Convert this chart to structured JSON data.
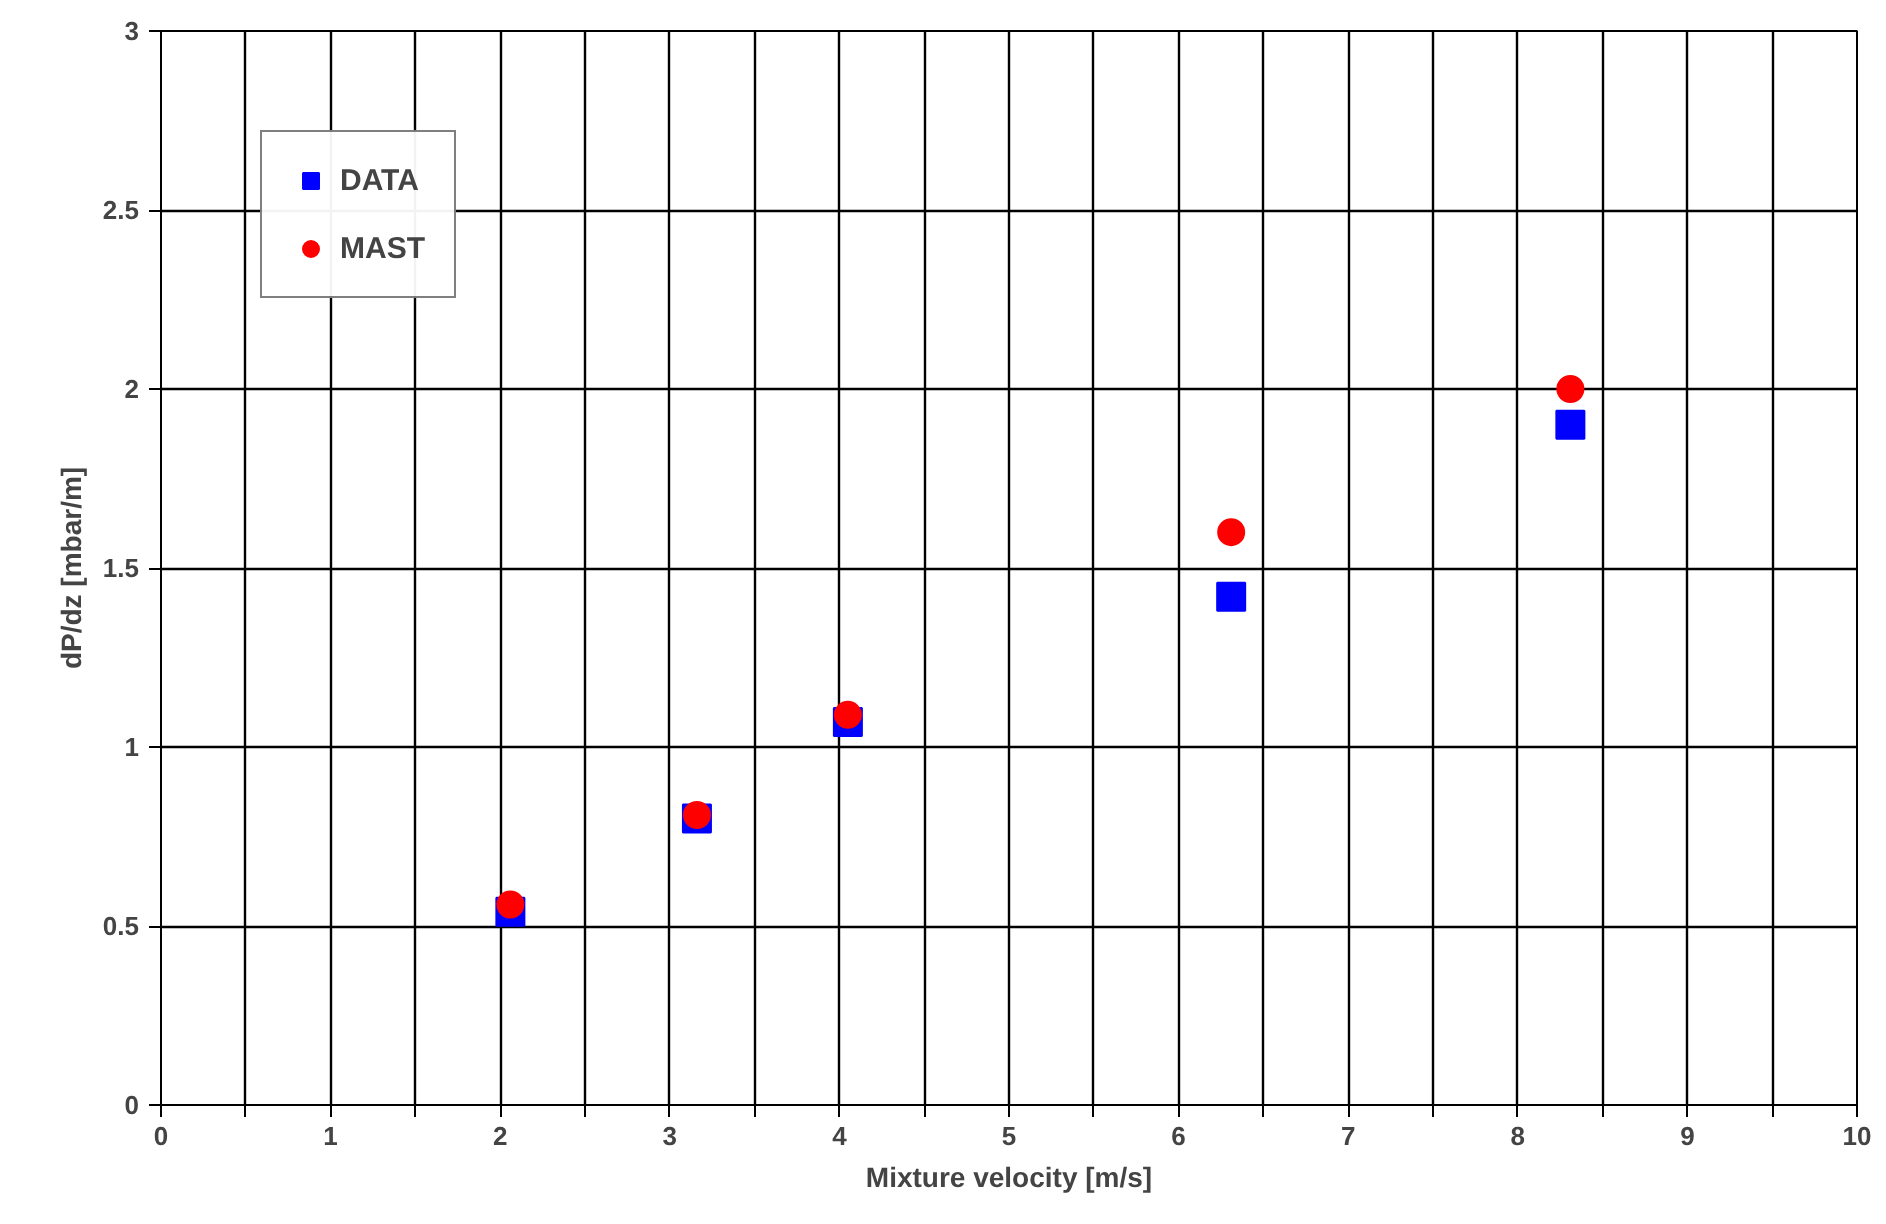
{
  "chart_data": {
    "type": "scatter",
    "xlabel": "Mixture velocity [m/s]",
    "ylabel": "dP/dz [mbar/m]",
    "xlim": [
      0,
      10
    ],
    "ylim": [
      0,
      3
    ],
    "xticks": [
      0,
      {
        "value": 0.5,
        "label": null
      },
      1,
      {
        "value": 1.5,
        "label": null
      },
      2,
      {
        "value": 2.5,
        "label": null
      },
      3,
      {
        "value": 3.5,
        "label": null
      },
      4,
      {
        "value": 4.5,
        "label": null
      },
      5,
      {
        "value": 5.5,
        "label": null
      },
      6,
      {
        "value": 6.5,
        "label": null
      },
      7,
      {
        "value": 7.5,
        "label": null
      },
      8,
      {
        "value": 8.5,
        "label": null
      },
      9,
      {
        "value": 9.5,
        "label": null
      },
      10
    ],
    "yticks": [
      0,
      0.5,
      1,
      1.5,
      2,
      2.5,
      3
    ],
    "grid": true,
    "legend": "top left",
    "x": [
      2.06,
      3.16,
      4.05,
      6.31,
      8.31
    ],
    "series": [
      {
        "name": "DATA",
        "color": "#0000ff",
        "marker": "square",
        "values": [
          0.54,
          0.8,
          1.07,
          1.42,
          1.9
        ]
      },
      {
        "name": "MAST",
        "color": "#ff0000",
        "marker": "circle",
        "values": [
          0.56,
          0.81,
          1.09,
          1.6,
          2.0
        ]
      }
    ]
  }
}
